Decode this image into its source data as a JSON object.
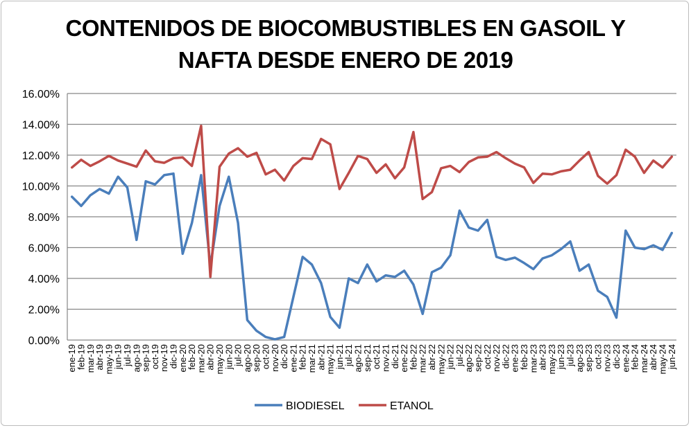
{
  "chart_data": {
    "type": "line",
    "title_lines": [
      "CONTENIDOS DE BIOCOMBUSTIBLES EN GASOIL Y",
      "NAFTA DESDE ENERO DE 2019"
    ],
    "xlabel": "",
    "ylabel": "",
    "ylim": [
      0,
      16
    ],
    "yticks": [
      "0.00%",
      "2.00%",
      "4.00%",
      "6.00%",
      "8.00%",
      "10.00%",
      "12.00%",
      "14.00%",
      "16.00%"
    ],
    "grid": true,
    "legend_position": "bottom",
    "categories": [
      "ene-19",
      "feb-19",
      "mar-19",
      "abr-19",
      "may-19",
      "jun-19",
      "jul-19",
      "ago-19",
      "sep-19",
      "oct-19",
      "nov-19",
      "dic-19",
      "ene-20",
      "feb-20",
      "mar-20",
      "abr-20",
      "may-20",
      "jun-20",
      "jul-20",
      "ago-20",
      "sep-20",
      "oct-20",
      "nov-20",
      "dic-20",
      "ene-21",
      "feb-21",
      "mar-21",
      "abr-21",
      "may-21",
      "jun-21",
      "jul-21",
      "ago-21",
      "sep-21",
      "oct-21",
      "nov-21",
      "dic-21",
      "ene-22",
      "feb-22",
      "mar-22",
      "abr-22",
      "may-22",
      "jun-22",
      "jul-22",
      "ago-22",
      "sep-22",
      "oct-22",
      "nov-22",
      "dic-22",
      "ene-23",
      "feb-23",
      "mar-23",
      "abr-23",
      "may-23",
      "jun-23",
      "jul-23",
      "ago-23",
      "sep-23",
      "oct-23",
      "nov-23",
      "dic-23",
      "ene-24",
      "feb-24",
      "mar-24",
      "abr-24",
      "may-24",
      "jun-24"
    ],
    "series": [
      {
        "name": "BIODIESEL",
        "color": "#4a7ebb",
        "values": [
          9.3,
          8.7,
          9.4,
          9.8,
          9.5,
          10.6,
          9.9,
          6.5,
          10.3,
          10.1,
          10.7,
          10.8,
          5.6,
          7.6,
          10.7,
          4.8,
          8.7,
          10.6,
          7.6,
          1.3,
          0.6,
          0.2,
          0.05,
          0.2,
          2.8,
          5.4,
          4.9,
          3.7,
          1.5,
          0.8,
          4.0,
          3.7,
          4.9,
          3.8,
          4.2,
          4.1,
          4.5,
          3.6,
          1.7,
          4.4,
          4.7,
          5.5,
          8.4,
          7.3,
          7.1,
          7.8,
          5.4,
          5.2,
          5.35,
          5.0,
          4.6,
          5.3,
          5.5,
          5.9,
          6.4,
          4.5,
          4.9,
          3.2,
          2.8,
          1.45,
          7.1,
          6.0,
          5.9,
          6.15,
          5.85,
          6.95
        ]
      },
      {
        "name": "ETANOL",
        "color": "#be4b48",
        "values": [
          11.2,
          11.7,
          11.3,
          11.6,
          11.95,
          11.65,
          11.45,
          11.25,
          12.3,
          11.6,
          11.5,
          11.8,
          11.85,
          11.3,
          13.9,
          4.1,
          11.25,
          12.1,
          12.45,
          11.9,
          12.15,
          10.75,
          11.05,
          10.35,
          11.3,
          11.8,
          11.75,
          13.05,
          12.7,
          9.8,
          10.85,
          11.95,
          11.75,
          10.85,
          11.4,
          10.5,
          11.2,
          13.5,
          9.15,
          9.6,
          11.15,
          11.3,
          10.9,
          11.55,
          11.85,
          11.9,
          12.2,
          11.8,
          11.45,
          11.2,
          10.2,
          10.8,
          10.75,
          10.95,
          11.05,
          11.65,
          12.2,
          10.65,
          10.15,
          10.7,
          12.35,
          11.9,
          10.85,
          11.65,
          11.2,
          11.9
        ]
      }
    ]
  }
}
